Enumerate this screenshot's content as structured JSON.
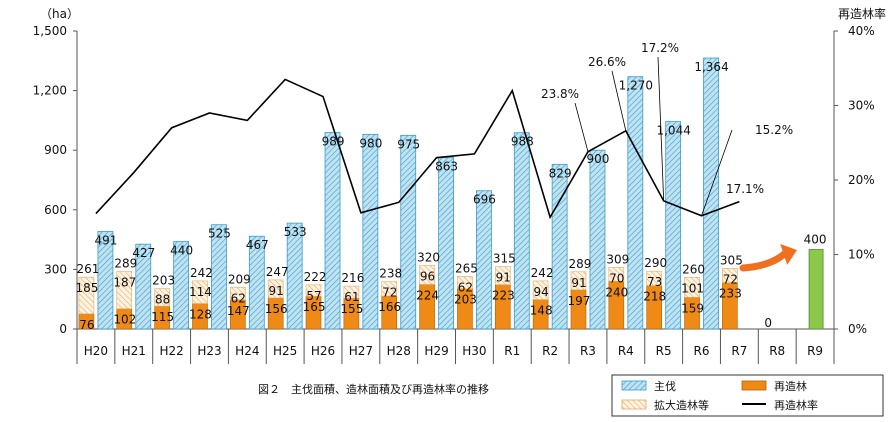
{
  "caption": "図２　主伐面積、造林面積及び再造林率の推移",
  "chart_data": {
    "type": "bar",
    "categories": [
      "H20",
      "H21",
      "H22",
      "H23",
      "H24",
      "H25",
      "H26",
      "H27",
      "H28",
      "H29",
      "H30",
      "R1",
      "R2",
      "R3",
      "R4",
      "R5",
      "R6",
      "R7",
      "R8",
      "R9"
    ],
    "left_axis": {
      "unit": "（ha）",
      "min": 0,
      "max": 1500,
      "ticks": [
        "0",
        "300",
        "600",
        "900",
        "1,200",
        "1,500"
      ]
    },
    "right_axis": {
      "title": "再造林率",
      "min": 0,
      "max": 40,
      "ticks": [
        "0%",
        "10%",
        "20%",
        "30%",
        "40%"
      ]
    },
    "series": [
      {
        "name": "主伐",
        "type": "bar",
        "color": "#bfe3f2",
        "values": [
          491,
          427,
          440,
          525,
          467,
          533,
          989,
          980,
          975,
          863,
          696,
          988,
          829,
          900,
          1270,
          1044,
          1364,
          null,
          null,
          null
        ],
        "labels": [
          "491",
          "427",
          "440",
          "525",
          "467",
          "533",
          "989",
          "980",
          "975",
          "863",
          "696",
          "988",
          "829",
          "900",
          "1,270",
          "1,044",
          "1,364",
          "",
          "",
          ""
        ]
      },
      {
        "name": "再造林",
        "type": "stacked-bar",
        "color": "#f08a16",
        "values": [
          76,
          102,
          115,
          128,
          147,
          156,
          165,
          155,
          166,
          224,
          203,
          223,
          148,
          197,
          240,
          218,
          159,
          233,
          0,
          null
        ],
        "labels": [
          "76",
          "102",
          "115",
          "128",
          "147",
          "156",
          "165",
          "155",
          "166",
          "224",
          "203",
          "223",
          "148",
          "197",
          "240",
          "218",
          "159",
          "233",
          "0",
          ""
        ]
      },
      {
        "name": "拡大造林等",
        "type": "stacked-bar",
        "color": "#f8d9a8",
        "values": [
          185,
          187,
          88,
          114,
          62,
          91,
          57,
          61,
          72,
          96,
          62,
          91,
          94,
          91,
          70,
          73,
          101,
          72,
          null,
          null
        ],
        "labels": [
          "185",
          "187",
          "88",
          "114",
          "62",
          "91",
          "57",
          "61",
          "72",
          "96",
          "62",
          "91",
          "94",
          "91",
          "70",
          "73",
          "101",
          "72",
          "",
          ""
        ]
      },
      {
        "name": "",
        "type": "bar",
        "color": "#8cc84b",
        "values": [
          null,
          null,
          null,
          null,
          null,
          null,
          null,
          null,
          null,
          null,
          null,
          null,
          null,
          null,
          null,
          null,
          null,
          null,
          null,
          400
        ],
        "labels": [
          "",
          "",
          "",
          "",
          "",
          "",
          "",
          "",
          "",
          "",
          "",
          "",
          "",
          "",
          "",
          "",
          "",
          "",
          "",
          "400"
        ]
      },
      {
        "name": "再造林率",
        "type": "line",
        "axis": "right",
        "color": "#000000",
        "values": [
          15.5,
          21.0,
          27.0,
          29.0,
          28.0,
          33.5,
          31.2,
          15.6,
          17.0,
          23.0,
          23.5,
          32.0,
          15.0,
          23.8,
          26.6,
          17.2,
          15.2,
          17.1,
          null,
          null
        ]
      }
    ],
    "stack_totals": [
      "261",
      "289",
      "203",
      "242",
      "209",
      "247",
      "222",
      "216",
      "238",
      "320",
      "265",
      "315",
      "242",
      "289",
      "309",
      "290",
      "260",
      "305",
      "",
      ""
    ],
    "annotations": [
      "23.8%",
      "26.6%",
      "17.2%",
      "15.2%",
      "17.1%"
    ],
    "legend": {
      "position": "bottom-right",
      "entries": [
        "主伐",
        "再造林",
        "拡大造林等",
        "再造林率"
      ]
    },
    "arrow_color": "#f07020"
  }
}
